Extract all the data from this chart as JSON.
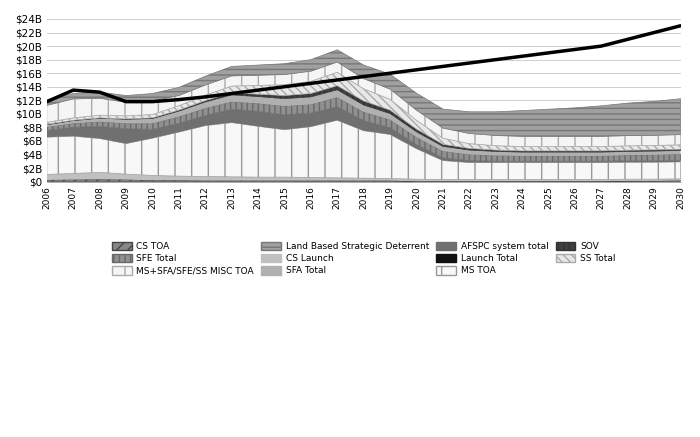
{
  "years": [
    2006,
    2007,
    2008,
    2009,
    2010,
    2011,
    2012,
    2013,
    2014,
    2015,
    2016,
    2017,
    2018,
    2019,
    2020,
    2021,
    2022,
    2023,
    2024,
    2025,
    2026,
    2027,
    2028,
    2029,
    2030
  ],
  "Launch_Total": [
    0.05,
    0.05,
    0.05,
    0.05,
    0.05,
    0.05,
    0.05,
    0.05,
    0.05,
    0.05,
    0.05,
    0.05,
    0.05,
    0.05,
    0.0,
    0.0,
    0.0,
    0.0,
    0.0,
    0.0,
    0.0,
    0.0,
    0.05,
    0.05,
    0.1
  ],
  "CS_TOA": [
    0.2,
    0.25,
    0.3,
    0.25,
    0.15,
    0.15,
    0.1,
    0.1,
    0.1,
    0.1,
    0.1,
    0.1,
    0.1,
    0.1,
    0.05,
    0.05,
    0.05,
    0.05,
    0.05,
    0.05,
    0.05,
    0.05,
    0.05,
    0.05,
    0.05
  ],
  "CS_Launch": [
    0.8,
    0.9,
    1.0,
    0.8,
    0.7,
    0.6,
    0.6,
    0.55,
    0.5,
    0.5,
    0.45,
    0.4,
    0.35,
    0.3,
    0.3,
    0.25,
    0.25,
    0.25,
    0.25,
    0.25,
    0.25,
    0.25,
    0.25,
    0.25,
    0.25
  ],
  "AFSPC_system": [
    1.0,
    1.3,
    1.8,
    2.2,
    1.3,
    1.3,
    1.5,
    2.0,
    2.2,
    2.2,
    2.0,
    2.0,
    1.5,
    1.0,
    0.6,
    0.4,
    0.3,
    0.2,
    0.2,
    0.2,
    0.2,
    0.2,
    0.2,
    0.2,
    0.2
  ],
  "MS_TOA": [
    5.5,
    5.5,
    5.0,
    4.5,
    5.5,
    6.5,
    7.5,
    8.0,
    7.5,
    7.0,
    7.5,
    8.5,
    7.0,
    6.5,
    4.5,
    2.8,
    2.5,
    2.5,
    2.5,
    2.5,
    2.5,
    2.5,
    2.5,
    2.5,
    2.5
  ],
  "SFE_Total": [
    0.5,
    0.6,
    0.7,
    0.8,
    0.9,
    1.0,
    1.1,
    1.1,
    1.2,
    1.3,
    1.3,
    1.4,
    1.3,
    1.2,
    1.1,
    1.0,
    0.9,
    0.85,
    0.8,
    0.8,
    0.8,
    0.8,
    0.85,
    0.9,
    0.95
  ],
  "SFA_Total": [
    0.35,
    0.4,
    0.5,
    0.6,
    0.7,
    0.8,
    0.9,
    1.0,
    1.0,
    1.1,
    1.1,
    1.1,
    1.0,
    0.9,
    0.8,
    0.7,
    0.65,
    0.6,
    0.55,
    0.55,
    0.55,
    0.55,
    0.55,
    0.55,
    0.55
  ],
  "SOV": [
    0.05,
    0.05,
    0.05,
    0.05,
    0.1,
    0.15,
    0.2,
    0.3,
    0.35,
    0.45,
    0.5,
    0.6,
    0.6,
    0.5,
    0.4,
    0.3,
    0.25,
    0.2,
    0.18,
    0.18,
    0.18,
    0.18,
    0.18,
    0.18,
    0.18
  ],
  "SS_Total": [
    0.3,
    0.35,
    0.4,
    0.45,
    0.5,
    0.65,
    0.8,
    1.0,
    1.3,
    1.6,
    1.8,
    2.0,
    1.8,
    1.6,
    1.3,
    0.9,
    0.7,
    0.65,
    0.65,
    0.65,
    0.65,
    0.65,
    0.65,
    0.65,
    0.65
  ],
  "MS_MISC_TOA": [
    2.5,
    2.8,
    2.5,
    2.0,
    2.0,
    1.5,
    1.5,
    1.5,
    1.5,
    1.5,
    1.5,
    1.5,
    1.5,
    1.5,
    1.5,
    1.5,
    1.5,
    1.5,
    1.5,
    1.5,
    1.5,
    1.5,
    1.5,
    1.5,
    1.5
  ],
  "LBSD": [
    0.8,
    0.8,
    0.9,
    1.0,
    1.1,
    1.2,
    1.3,
    1.4,
    1.5,
    1.6,
    1.7,
    1.8,
    2.0,
    2.2,
    2.5,
    2.8,
    3.2,
    3.5,
    3.8,
    4.0,
    4.2,
    4.5,
    4.8,
    5.0,
    5.3
  ],
  "Launch_Total_line": [
    11.8,
    13.5,
    13.2,
    11.8,
    11.8,
    12.1,
    12.5,
    13.0,
    13.5,
    14.0,
    14.5,
    15.0,
    15.5,
    16.0,
    16.5,
    17.0,
    17.5,
    18.0,
    18.5,
    19.0,
    19.5,
    20.0,
    21.0,
    22.0,
    23.0
  ],
  "ylim": [
    0,
    24
  ],
  "yticks": [
    0,
    2,
    4,
    6,
    8,
    10,
    12,
    14,
    16,
    18,
    20,
    22,
    24
  ],
  "ytick_labels": [
    "$0",
    "$2B",
    "$4B",
    "$6B",
    "$8B",
    "$10B",
    "$12B",
    "$14B",
    "$16B",
    "$18B",
    "$20B",
    "$22B",
    "$24B"
  ]
}
